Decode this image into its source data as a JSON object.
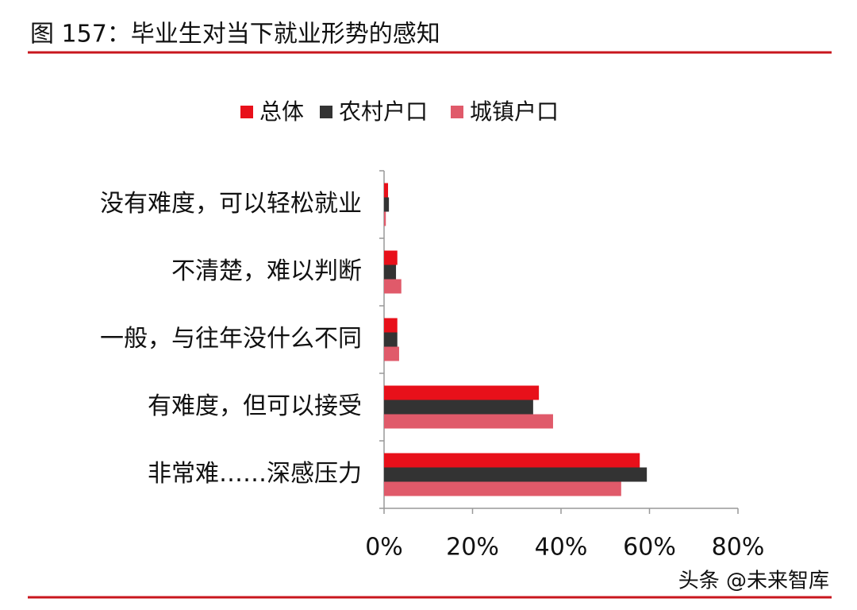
{
  "chart_data": {
    "type": "hbar",
    "title": "图 157：毕业生对当下就业形势的感知",
    "categories": [
      "没有难度，可以轻松就业",
      "不清楚，难以判断",
      "一般，与往年没什么不同",
      "有难度，但可以接受",
      "非常难……深感压力"
    ],
    "series": [
      {
        "name": "总体",
        "color": "#e8101a",
        "values": [
          0.9,
          3.0,
          3.0,
          35.0,
          57.8
        ]
      },
      {
        "name": "农村户口",
        "color": "#333333",
        "values": [
          1.1,
          2.7,
          3.0,
          33.7,
          59.4
        ]
      },
      {
        "name": "城镇户口",
        "color": "#e05a6a",
        "values": [
          0.4,
          3.9,
          3.4,
          38.2,
          53.6
        ]
      }
    ],
    "xlim": [
      0,
      80
    ],
    "xticks": [
      {
        "value": 0,
        "label": "0%"
      },
      {
        "value": 20,
        "label": "20%"
      },
      {
        "value": 40,
        "label": "40%"
      },
      {
        "value": 60,
        "label": "60%"
      },
      {
        "value": 80,
        "label": "80%"
      }
    ],
    "legend": "top",
    "watermark": "头条 @未来智库"
  }
}
